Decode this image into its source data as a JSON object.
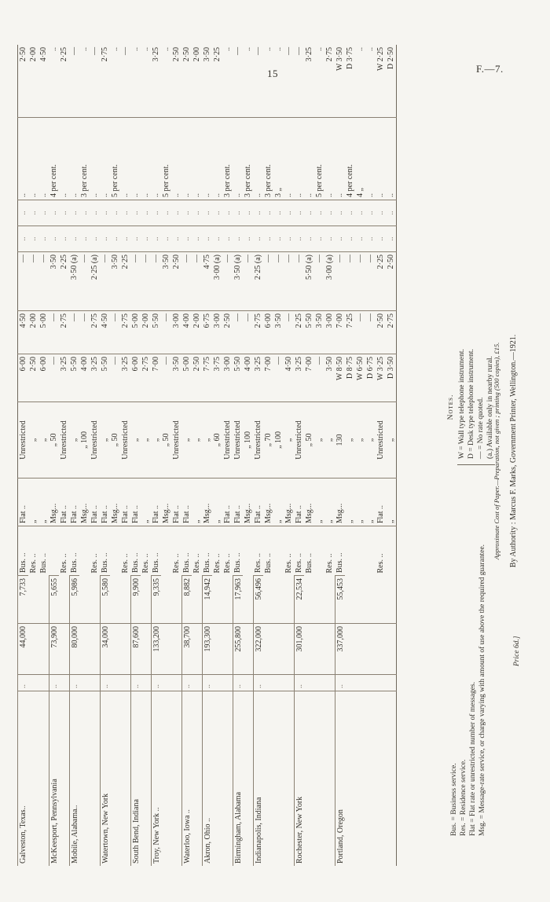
{
  "page": {
    "number": "15",
    "doc_ref": "F.—7."
  },
  "table": {
    "dots": "..",
    "blocks": [
      {
        "city": "Galveston, Texas..",
        "leader": "..",
        "pop": "44,000",
        "tel": "7,733",
        "rows": [
          {
            "svc": "Bus. ..",
            "plan": "Flat ..",
            "limit": "Unrestricted",
            "a": "6·00",
            "b": "4·50",
            "c": "—",
            "pct": "..",
            "d": "2·50"
          },
          {
            "svc": "Res. ..",
            "plan": "„",
            "limit": "„",
            "a": "2·50",
            "b": "2·00",
            "c": "—",
            "pct": "..",
            "d": "2·00"
          },
          {
            "svc": "Bus. ..",
            "plan": "„",
            "limit": "„",
            "a": "6·00",
            "b": "5·00",
            "c": "—",
            "pct": "..",
            "d": "4·50"
          }
        ]
      },
      {
        "city": "McKeesport, Pennsylvania",
        "leader": "..",
        "pop": "73,900",
        "tel": "5,655",
        "rows": [
          {
            "svc": "",
            "plan": "Msg...",
            "limit": "„ 50",
            "a": "—",
            "b": "—",
            "c": "3·50",
            "pct": "4 per cent.",
            "d": ".."
          },
          {
            "svc": "Res. ..",
            "plan": "Flat ..",
            "limit": "Unrestricted",
            "a": "3·25",
            "b": "2·75",
            "c": "2·25",
            "pct": "..",
            "d": "2·25"
          }
        ]
      },
      {
        "city": "Mobile, Alabama..",
        "leader": "..",
        "pop": "80,000",
        "tel": "5,986",
        "rows": [
          {
            "svc": "Bus. ..",
            "plan": "Flat ..",
            "limit": "„",
            "a": "5·50",
            "b": "—",
            "c": "3·50 (a)",
            "pct": "..",
            "d": "—"
          },
          {
            "svc": "",
            "plan": "Msg...",
            "limit": "„ 100",
            "a": "4·00",
            "b": "—",
            "c": "—",
            "pct": "3 per cent.",
            "d": ".."
          },
          {
            "svc": "Res. ..",
            "plan": "Flat ..",
            "limit": "Unrestricted",
            "a": "3·25",
            "b": "2·75",
            "c": "2·25 (a)",
            "pct": "..",
            "d": "—"
          }
        ]
      },
      {
        "city": "Watertown, New York",
        "leader": "..",
        "pop": "34,000",
        "tel": "5,580",
        "rows": [
          {
            "svc": "Bus. ..",
            "plan": "Flat ..",
            "limit": "„",
            "a": "5·50",
            "b": "4·50",
            "c": "—",
            "pct": "..",
            "d": "2·75"
          },
          {
            "svc": "",
            "plan": "Msg...",
            "limit": "„ 50",
            "a": "—",
            "b": "—",
            "c": "3·50",
            "pct": "5 per cent.",
            "d": ".."
          },
          {
            "svc": "Res. ..",
            "plan": "Flat ..",
            "limit": "Unrestricted",
            "a": "3·25",
            "b": "2·75",
            "c": "2·25",
            "pct": "..",
            "d": "—"
          }
        ]
      },
      {
        "city": "South Bend, Indiana",
        "leader": "..",
        "pop": "87,600",
        "tel": "9,900",
        "rows": [
          {
            "svc": "Bus. ..",
            "plan": "Flat ..",
            "limit": "„",
            "a": "6·00",
            "b": "5·00",
            "c": "—",
            "pct": "..",
            "d": ".."
          },
          {
            "svc": "Res. ..",
            "plan": "„",
            "limit": "„",
            "a": "2·75",
            "b": "2·00",
            "c": "—",
            "pct": "..",
            "d": ".."
          }
        ]
      },
      {
        "city": "Troy, New York ..",
        "leader": "..",
        "pop": "133,200",
        "tel": "9,335",
        "rows": [
          {
            "svc": "Bus. ..",
            "plan": "Flat ..",
            "limit": "„",
            "a": "7·00",
            "b": "5·50",
            "c": "—",
            "pct": "..",
            "d": "3·25"
          },
          {
            "svc": "",
            "plan": "Msg...",
            "limit": "„ 50",
            "a": "—",
            "b": "—",
            "c": "3·50",
            "pct": "5 per cent.",
            "d": ".."
          },
          {
            "svc": "Res. ..",
            "plan": "Flat ..",
            "limit": "Unrestricted",
            "a": "3·50",
            "b": "3·00",
            "c": "2·50",
            "pct": "..",
            "d": "2·50"
          }
        ]
      },
      {
        "city": "Waterloo, Iowa ..",
        "leader": "..",
        "pop": "38,700",
        "tel": "8,882",
        "rows": [
          {
            "svc": "Bus. ..",
            "plan": "Flat ..",
            "limit": "„",
            "a": "5·00",
            "b": "4·00",
            "c": "—",
            "pct": "..",
            "d": "2·50"
          },
          {
            "svc": "Res. ..",
            "plan": "„",
            "limit": "„",
            "a": "2·50",
            "b": "2·00",
            "c": "—",
            "pct": "..",
            "d": "2·00"
          }
        ]
      },
      {
        "city": "Akron, Ohio ..",
        "leader": "..",
        "pop": "193,300",
        "tel": "14,942",
        "rows": [
          {
            "svc": "Bus. ..",
            "plan": "Msg...",
            "limit": "„",
            "a": "7·75",
            "b": "6·75",
            "c": "4·75",
            "pct": "..",
            "d": "3·50"
          },
          {
            "svc": "Res. ..",
            "plan": "„",
            "limit": "„ 60",
            "a": "3·75",
            "b": "3·00",
            "c": "3·00 (a)",
            "pct": "..",
            "d": "2·25"
          },
          {
            "svc": "Res. ..",
            "plan": "Flat ..",
            "limit": "Unrestricted",
            "a": "3·00",
            "b": "2·50",
            "c": "—",
            "pct": "3 per cent.",
            "d": ".."
          }
        ]
      },
      {
        "city": "Birmingham, Alabama",
        "leader": "..",
        "pop": "255,800",
        "tel": "17,963",
        "rows": [
          {
            "svc": "Bus. ..",
            "plan": "Flat ..",
            "limit": "Unrestricted",
            "a": "5·50",
            "b": "—",
            "c": "3·50 (a)",
            "pct": "..",
            "d": "—"
          },
          {
            "svc": "",
            "plan": "Msg...",
            "limit": "„ 100",
            "a": "4·00",
            "b": "—",
            "c": "—",
            "pct": "3 per cent.",
            "d": ".."
          }
        ]
      },
      {
        "city": "Indianapolis, Indiana",
        "leader": "..",
        "pop": "322,000",
        "tel": "56,496",
        "rows": [
          {
            "svc": "Res. ..",
            "plan": "Flat ..",
            "limit": "Unrestricted",
            "a": "3·25",
            "b": "2·75",
            "c": "2·25 (a)",
            "pct": "..",
            "d": "—"
          },
          {
            "svc": "Bus. ..",
            "plan": "Msg...",
            "limit": "„ 70",
            "a": "7·00",
            "b": "6·00",
            "c": "—",
            "pct": "3 per cent.",
            "d": ".."
          },
          {
            "svc": "",
            "plan": "„",
            "limit": "„ 100",
            "a": "—",
            "b": "3·50",
            "c": "—",
            "pct": "3 „",
            "d": ".."
          },
          {
            "svc": "Res. ..",
            "plan": "Msg...",
            "limit": "„",
            "a": "4·50",
            "b": "—",
            "c": "—",
            "pct": "..",
            "d": "—"
          }
        ]
      },
      {
        "city": "Rochester, New York",
        "leader": "..",
        "pop": "301,000",
        "tel": "22,534",
        "rows": [
          {
            "svc": "Res. ..",
            "plan": "Flat ..",
            "limit": "Unrestricted",
            "a": "3·25",
            "b": "2·25",
            "c": "—",
            "pct": "..",
            "d": "—"
          },
          {
            "svc": "Bus. ..",
            "plan": "Msg...",
            "limit": "„ 50",
            "a": "7·00",
            "b": "5·50",
            "c": "5·50 (a)",
            "pct": "..",
            "d": "3·25"
          },
          {
            "svc": "",
            "plan": "„",
            "limit": "„",
            "a": "—",
            "b": "3·50",
            "c": "—",
            "pct": "5 per cent.",
            "d": ".."
          },
          {
            "svc": "Res. ..",
            "plan": "„",
            "limit": "„",
            "a": "3·50",
            "b": "3·00",
            "c": "3·00 (a)",
            "pct": "..",
            "d": "2·75"
          }
        ]
      },
      {
        "city": "Portland, Oregon",
        "leader": "..",
        "pop": "337,000",
        "tel": "55,453",
        "rows": [
          {
            "svc": "Bus. ..",
            "plan": "Msg...",
            "limit": "130",
            "a": "W 8·50",
            "b": "7·00",
            "c": "—",
            "pct": "..",
            "d": "W 3·50"
          },
          {
            "svc": "",
            "plan": "„",
            "limit": "„",
            "a": "D 8·75",
            "b": "7·25",
            "c": "—",
            "pct": "4 per cent.",
            "d": "D 3·75"
          },
          {
            "svc": "",
            "plan": "„",
            "limit": "„",
            "a": "W 6·50",
            "b": "—",
            "c": "—",
            "pct": "4 „",
            "d": ".."
          },
          {
            "svc": "",
            "plan": "„",
            "limit": "„",
            "a": "D 6·75",
            "b": "—",
            "c": "—",
            "pct": "..",
            "d": ".."
          },
          {
            "svc": "Res. ..",
            "plan": "Flat ..",
            "limit": "Unrestricted",
            "a": "W 3·25",
            "b": "2·50",
            "c": "2·25",
            "pct": "..",
            "d": "W 2·25"
          },
          {
            "svc": "",
            "plan": "„",
            "limit": "„",
            "a": "D 3·50",
            "b": "2·75",
            "c": "2·50",
            "pct": "..",
            "d": "D 2·50"
          }
        ]
      }
    ]
  },
  "legend": {
    "line1": "Bus. = Business service.",
    "line2": "Res. = Residence service.",
    "line3": "Flat = Flat rate or unrestricted number of messages.",
    "line4": "Msg. = Message-rate service, or charge varying with amount of use above the required guarantee."
  },
  "notes": {
    "title": "Notes.",
    "line1": "W = Wall type telephone instrument.",
    "line2": "D = Desk type telephone instrument.",
    "line3": "— = No rate quoted.",
    "line4": "(a.) Available only in nearby rural."
  },
  "cost_line": "Approximate Cost of Paper.—Preparation, not given ; printing (500 copies), £15.",
  "authority_line": "By Authority : Marcus F. Marks, Government Printer, Wellington.—1921.",
  "price_line": "Price 6d.]"
}
